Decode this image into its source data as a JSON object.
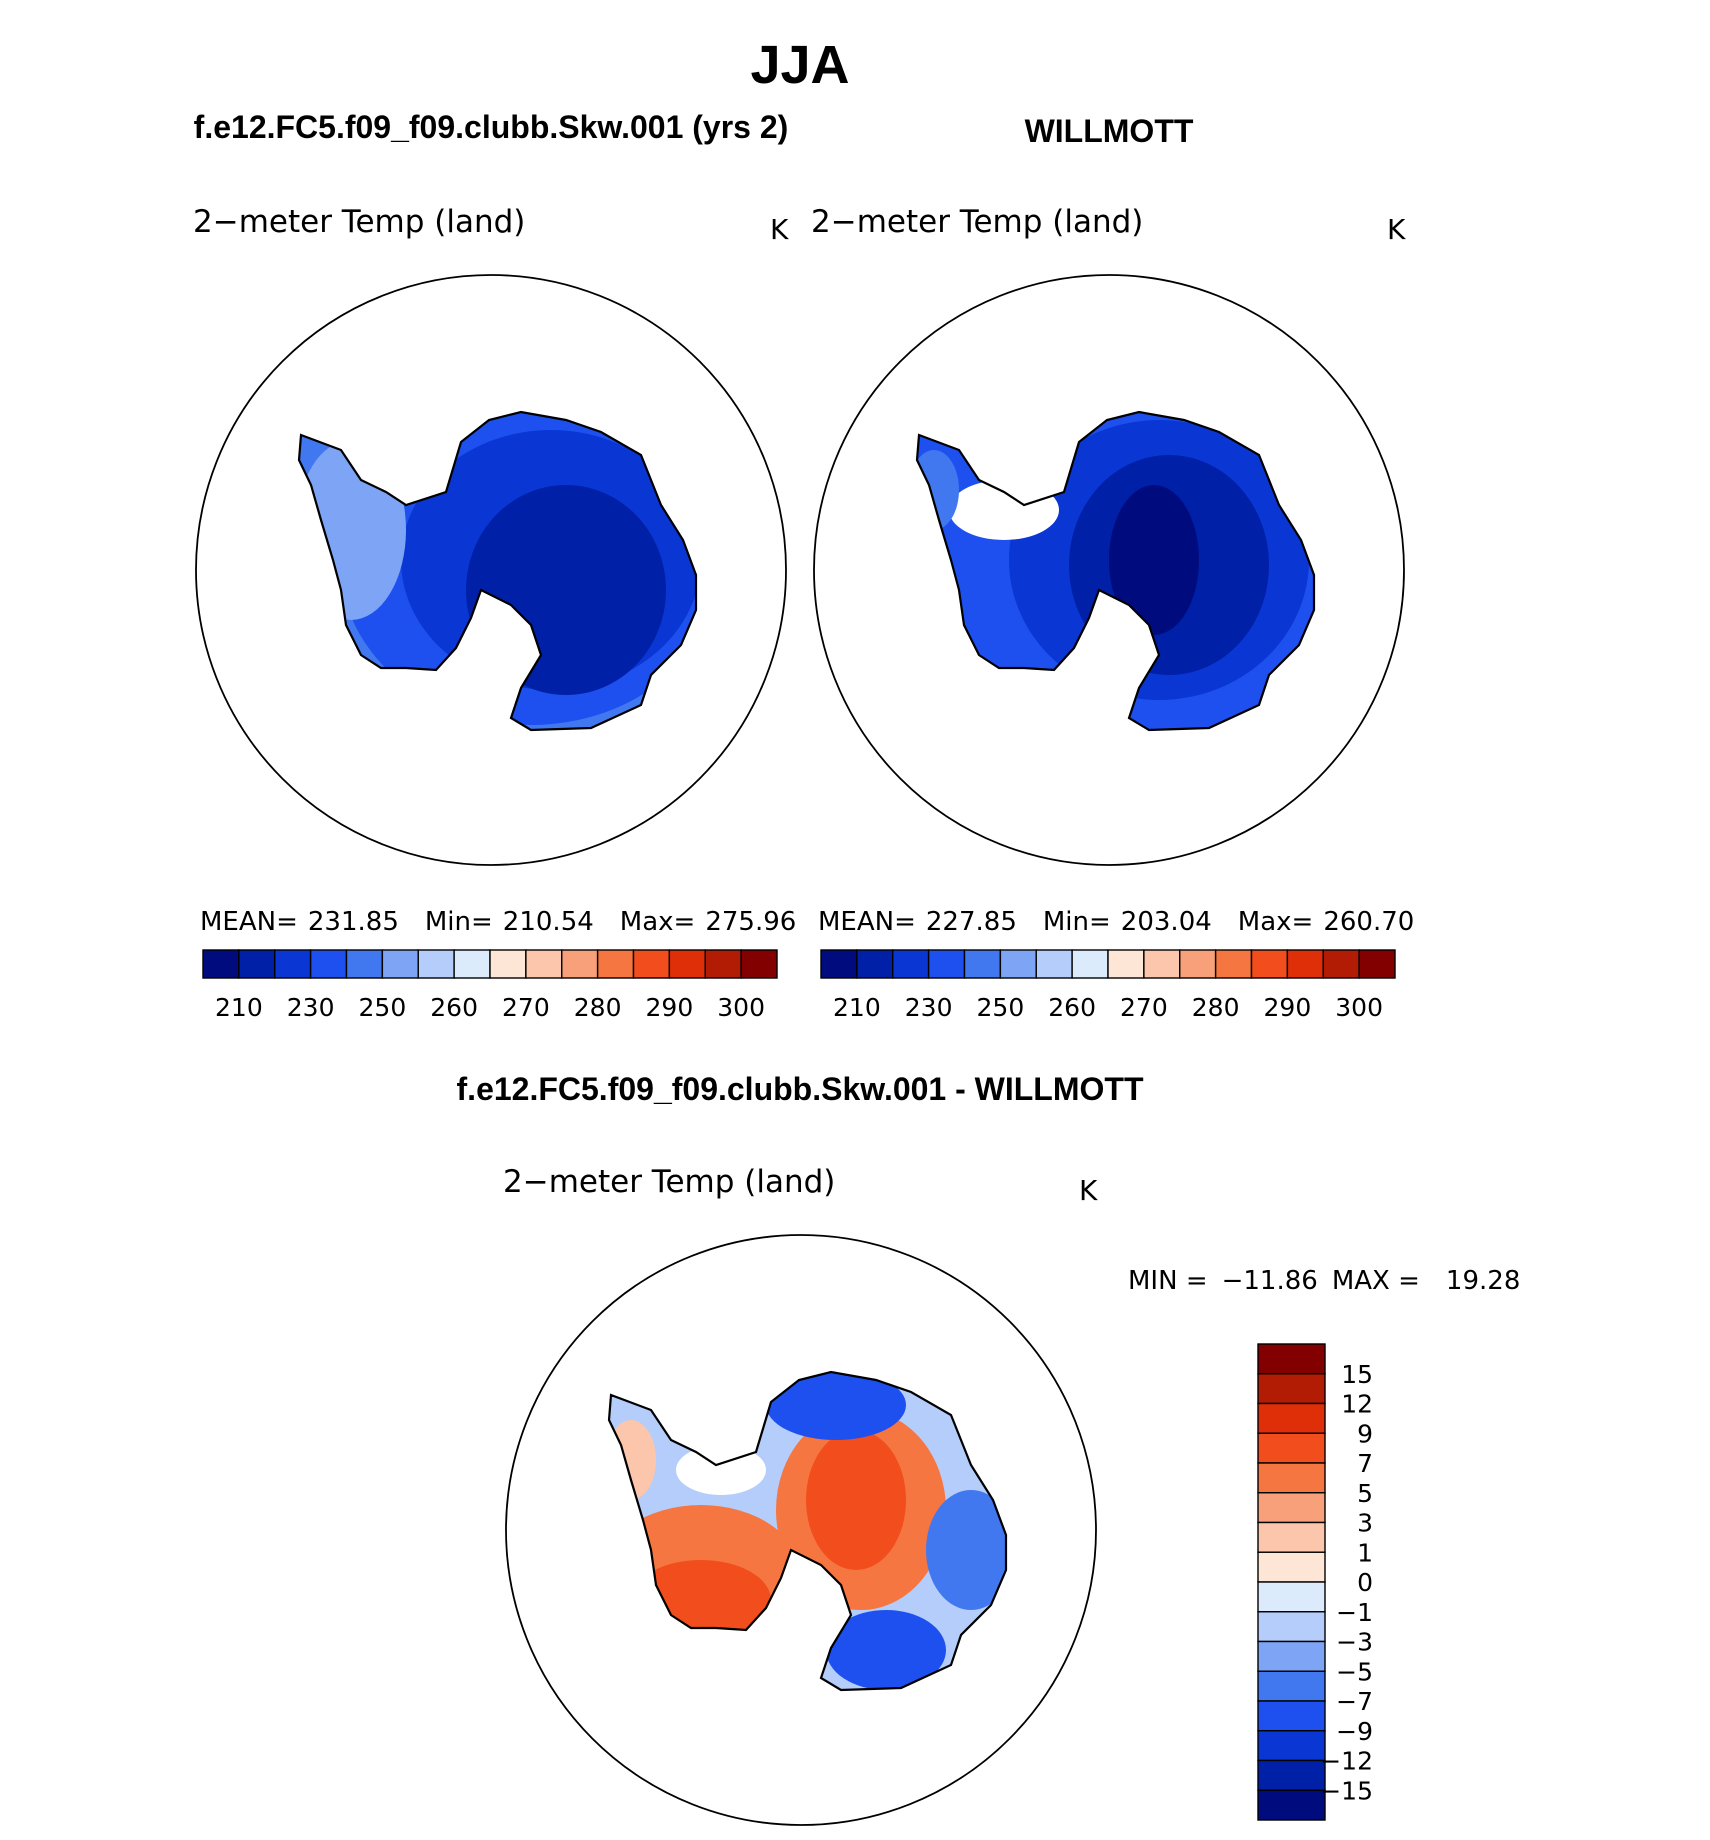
{
  "chart_data": [
    {
      "type": "heatmap",
      "season_title": "JJA",
      "panel_heading": "f.e12.FC5.f09_f09.clubb.Skw.001 (yrs 2)",
      "title": "2−meter Temp (land)",
      "units": "K",
      "projection": "south polar stereographic (Antarctica)",
      "stats": {
        "mean_label": "MEAN=",
        "mean": "231.85",
        "min_label": "Min=",
        "min": "210.54",
        "max_label": "Max=",
        "max": "275.96"
      },
      "colorbar": {
        "orientation": "horizontal",
        "colors": [
          "#000c7d",
          "#0020a8",
          "#0a37d4",
          "#1e50f0",
          "#4178f0",
          "#7ea5f5",
          "#b4cdfa",
          "#dcebfc",
          "#fde6d6",
          "#fbc6ab",
          "#f8a07a",
          "#f57640",
          "#f24d1c",
          "#de2f08",
          "#b21c04",
          "#820000"
        ],
        "tick_labels": [
          "210",
          "230",
          "250",
          "260",
          "270",
          "280",
          "290",
          "300"
        ]
      }
    },
    {
      "type": "heatmap",
      "panel_heading": "WILLMOTT",
      "title": "2−meter Temp (land)",
      "units": "K",
      "projection": "south polar stereographic (Antarctica)",
      "stats": {
        "mean_label": "MEAN=",
        "mean": "227.85",
        "min_label": "Min=",
        "min": "203.04",
        "max_label": "Max=",
        "max": "260.70"
      },
      "colorbar": {
        "orientation": "horizontal",
        "colors": [
          "#000c7d",
          "#0020a8",
          "#0a37d4",
          "#1e50f0",
          "#4178f0",
          "#7ea5f5",
          "#b4cdfa",
          "#dcebfc",
          "#fde6d6",
          "#fbc6ab",
          "#f8a07a",
          "#f57640",
          "#f24d1c",
          "#de2f08",
          "#b21c04",
          "#820000"
        ],
        "tick_labels": [
          "210",
          "230",
          "250",
          "260",
          "270",
          "280",
          "290",
          "300"
        ]
      }
    },
    {
      "type": "heatmap",
      "panel_heading": "f.e12.FC5.f09_f09.clubb.Skw.001 - WILLMOTT",
      "title": "2−meter Temp (land)",
      "units": "K",
      "projection": "south polar stereographic (Antarctica)",
      "stats": {
        "min_label": "MIN =",
        "min": "−11.86",
        "max_label": "MAX =",
        "max": "19.28"
      },
      "colorbar": {
        "orientation": "vertical",
        "colors_top_to_bottom": [
          "#820000",
          "#b21c04",
          "#de2f08",
          "#f24d1c",
          "#f57640",
          "#f8a07a",
          "#fbc6ab",
          "#fde6d6",
          "#dcebfc",
          "#b4cdfa",
          "#7ea5f5",
          "#4178f0",
          "#1e50f0",
          "#0a37d4",
          "#0020a8",
          "#000c7d"
        ],
        "tick_labels": [
          "15",
          "12",
          "9",
          "7",
          "5",
          "3",
          "1",
          "0",
          "−1",
          "−3",
          "−5",
          "−7",
          "−9",
          "−12",
          "−15"
        ]
      }
    }
  ]
}
